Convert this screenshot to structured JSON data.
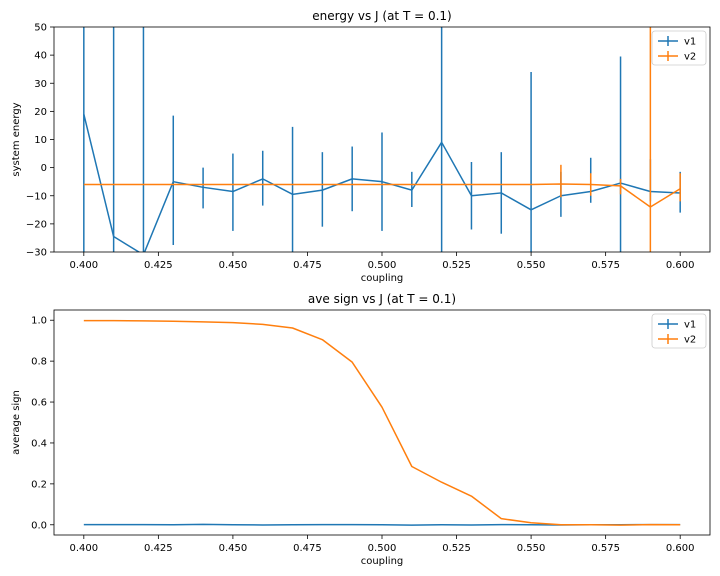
{
  "chart_data": [
    {
      "type": "line",
      "title": "energy vs J (at T = 0.1)",
      "xlabel": "coupling",
      "ylabel": "system energy",
      "xlim": [
        0.39,
        0.61
      ],
      "ylim": [
        -30,
        50
      ],
      "xticks": [
        "0.400",
        "0.425",
        "0.450",
        "0.475",
        "0.500",
        "0.525",
        "0.550",
        "0.575",
        "0.600"
      ],
      "yticks": [
        "−30",
        "−20",
        "−10",
        "0",
        "10",
        "20",
        "30",
        "40",
        "50"
      ],
      "grid": false,
      "legend": "top-right",
      "x": [
        0.4,
        0.41,
        0.42,
        0.43,
        0.44,
        0.45,
        0.46,
        0.47,
        0.48,
        0.49,
        0.5,
        0.51,
        0.52,
        0.53,
        0.54,
        0.55,
        0.56,
        0.57,
        0.58,
        0.59,
        0.6
      ],
      "series": [
        {
          "name": "v1",
          "color": "#1f77b4",
          "values": [
            19,
            -24.5,
            -31,
            -5,
            -7,
            -8.5,
            -4,
            -9.5,
            -8,
            -4,
            -5,
            -8,
            9,
            -10,
            -9,
            -15,
            -10,
            -8.5,
            -5.5,
            -8.5,
            -9
          ],
          "err_low": [
            -60,
            -60,
            -60,
            -27.5,
            -14.5,
            -22.5,
            -13.5,
            -31,
            -21,
            -15.5,
            -22.5,
            -14,
            -60,
            -22,
            -23.5,
            -60,
            -17.5,
            -12.5,
            -60,
            -12,
            -16
          ],
          "err_high": [
            60,
            60,
            60,
            18.5,
            0,
            5,
            6,
            14.5,
            5.5,
            7.5,
            12.5,
            -1.5,
            60,
            2,
            5.5,
            34,
            -1.5,
            3.5,
            39.5,
            3,
            -1.5
          ]
        },
        {
          "name": "v2",
          "color": "#ff7f0e",
          "values": [
            -6,
            -6,
            -6,
            -6,
            -6,
            -6,
            -6,
            -6,
            -6,
            -6,
            -6,
            -6,
            -6,
            -6,
            -6,
            -6,
            -5.8,
            -6,
            -6.5,
            -14,
            -7.5
          ],
          "err_low": [
            -6,
            -6,
            -6,
            -6,
            -6,
            -6,
            -6,
            -6,
            -6,
            -6,
            -6,
            -6,
            -6,
            -6,
            -6,
            -6,
            -10.5,
            -10,
            -9.5,
            -60,
            -12
          ],
          "err_high": [
            -6,
            -6,
            -6,
            -6,
            -6,
            -6,
            -6,
            -6,
            -6,
            -6,
            -6,
            -6,
            -6,
            -6,
            -6,
            -6,
            1,
            -2,
            -4,
            60,
            -2
          ]
        }
      ]
    },
    {
      "type": "line",
      "title": "ave sign vs J (at T = 0.1)",
      "xlabel": "coupling",
      "ylabel": "average sign",
      "xlim": [
        0.39,
        0.61
      ],
      "ylim": [
        -0.05,
        1.05
      ],
      "xticks": [
        "0.400",
        "0.425",
        "0.450",
        "0.475",
        "0.500",
        "0.525",
        "0.550",
        "0.575",
        "0.600"
      ],
      "yticks": [
        "0.0",
        "0.2",
        "0.4",
        "0.6",
        "0.8",
        "1.0"
      ],
      "grid": false,
      "legend": "top-right",
      "x": [
        0.4,
        0.41,
        0.42,
        0.43,
        0.44,
        0.45,
        0.46,
        0.47,
        0.48,
        0.49,
        0.5,
        0.51,
        0.52,
        0.53,
        0.54,
        0.55,
        0.56,
        0.57,
        0.58,
        0.59,
        0.6
      ],
      "series": [
        {
          "name": "v1",
          "color": "#1f77b4",
          "values": [
            0.001,
            0.001,
            0.001,
            0.0,
            0.002,
            0.0,
            -0.001,
            0.0,
            0.001,
            0.001,
            0.0,
            -0.002,
            0.0,
            -0.001,
            0.001,
            0.0,
            -0.001,
            0.0,
            0.0,
            0.001,
            0.001
          ]
        },
        {
          "name": "v2",
          "color": "#ff7f0e",
          "values": [
            0.998,
            0.998,
            0.997,
            0.995,
            0.992,
            0.988,
            0.98,
            0.962,
            0.905,
            0.795,
            0.575,
            0.285,
            0.208,
            0.14,
            0.03,
            0.01,
            0.0,
            0.0,
            -0.002,
            0.001,
            0.0
          ]
        }
      ]
    }
  ]
}
